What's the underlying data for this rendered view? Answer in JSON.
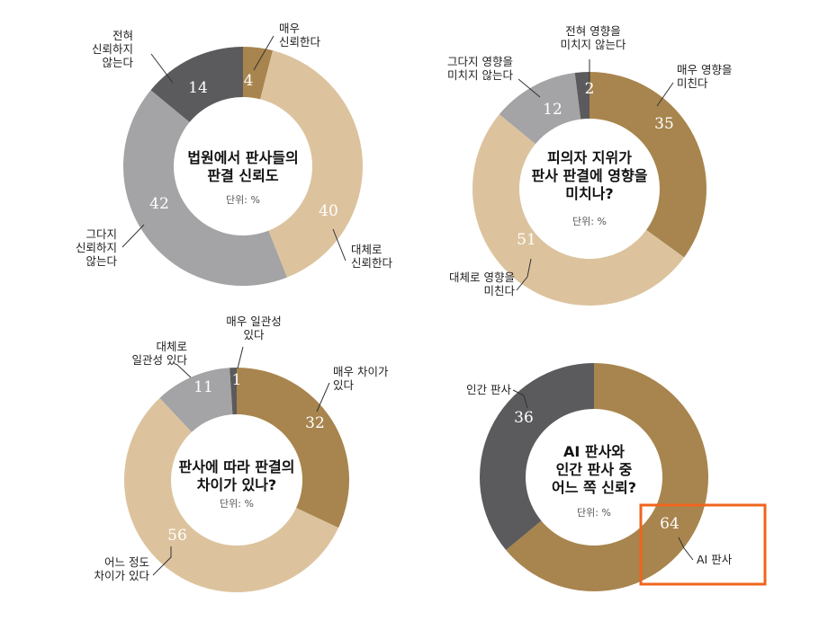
{
  "colors": {
    "brown": "#a8854e",
    "beige": "#dcc39e",
    "gray": "#a4a3a5",
    "darkgray": "#5b5a5c",
    "highlight": "#f0641e"
  },
  "chart_data": [
    {
      "type": "pie",
      "title_lines": [
        "법원에서 판사들의",
        "판결 신뢰도"
      ],
      "unit": "단위: %",
      "slices": [
        {
          "label_lines": [
            "매우",
            "신뢰한다"
          ],
          "value": 4,
          "color": "#a8854e"
        },
        {
          "label_lines": [
            "대체로",
            "신뢰한다"
          ],
          "value": 40,
          "color": "#dcc39e"
        },
        {
          "label_lines": [
            "그다지",
            "신뢰하지",
            "않는다"
          ],
          "value": 42,
          "color": "#a4a3a5"
        },
        {
          "label_lines": [
            "전혀",
            "신뢰하지",
            "않는다"
          ],
          "value": 14,
          "color": "#5b5a5c"
        }
      ]
    },
    {
      "type": "pie",
      "title_lines": [
        "피의자 지위가",
        "판사 판결에 영향을",
        "미치나?"
      ],
      "unit": "단위: %",
      "slices": [
        {
          "label_lines": [
            "매우 영향을",
            "미친다"
          ],
          "value": 35,
          "color": "#a8854e"
        },
        {
          "label_lines": [
            "대체로 영향을",
            "미친다"
          ],
          "value": 51,
          "color": "#dcc39e"
        },
        {
          "label_lines": [
            "그다지 영향을",
            "미치지 않는다"
          ],
          "value": 12,
          "color": "#a4a3a5"
        },
        {
          "label_lines": [
            "전혀 영향을",
            "미치지 않는다"
          ],
          "value": 2,
          "color": "#5b5a5c"
        }
      ]
    },
    {
      "type": "pie",
      "title_lines": [
        "판사에 따라 판결의",
        "차이가 있나?"
      ],
      "unit": "단위: %",
      "slices": [
        {
          "label_lines": [
            "매우 차이가",
            "있다"
          ],
          "value": 32,
          "color": "#a8854e"
        },
        {
          "label_lines": [
            "어느 정도",
            "차이가 있다"
          ],
          "value": 56,
          "color": "#dcc39e"
        },
        {
          "label_lines": [
            "대체로",
            "일관성 있다"
          ],
          "value": 11,
          "color": "#a4a3a5"
        },
        {
          "label_lines": [
            "매우 일관성",
            "있다"
          ],
          "value": 1,
          "color": "#5b5a5c"
        }
      ]
    },
    {
      "type": "pie",
      "title_lines": [
        "AI 판사와",
        "인간 판사 중",
        "어느 쪽 신뢰?"
      ],
      "unit": "단위: %",
      "slices": [
        {
          "label_lines": [
            "AI 판사"
          ],
          "value": 64,
          "color": "#a8854e"
        },
        {
          "label_lines": [
            "인간 판사"
          ],
          "value": 36,
          "color": "#5b5a5c"
        }
      ]
    }
  ]
}
